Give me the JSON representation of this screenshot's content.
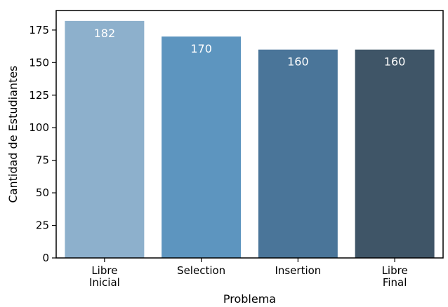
{
  "chart_data": {
    "type": "bar",
    "title": "",
    "xlabel": "Problema",
    "ylabel": "Cantidad de Estudiantes",
    "categories": [
      [
        "Libre",
        "Inicial"
      ],
      [
        "Selection"
      ],
      [
        "Insertion"
      ],
      [
        "Libre",
        "Final"
      ]
    ],
    "values": [
      182,
      170,
      160,
      160
    ],
    "data_labels": [
      "182",
      "170",
      "160",
      "160"
    ],
    "colors": [
      "#8DB0CC",
      "#5D95BF",
      "#4A7599",
      "#3F5567"
    ],
    "ylim": [
      0,
      190
    ],
    "yticks": [
      0,
      25,
      50,
      75,
      100,
      125,
      150,
      175
    ],
    "ytick_labels": [
      "0",
      "25",
      "50",
      "75",
      "100",
      "125",
      "150",
      "175"
    ],
    "grid": false,
    "legend": "none"
  }
}
